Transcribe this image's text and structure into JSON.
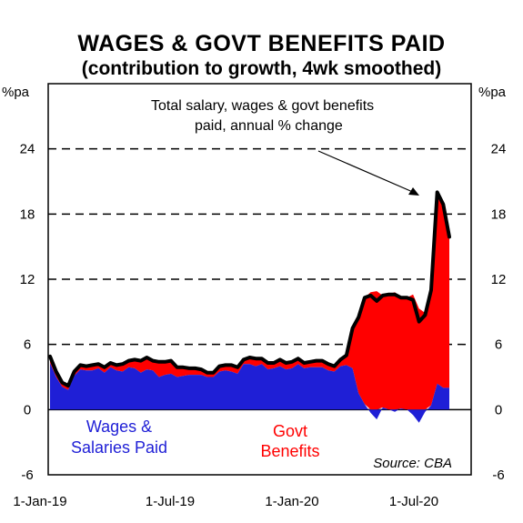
{
  "chart_data": {
    "type": "area",
    "title": "WAGES & GOVT BENEFITS PAID",
    "subtitle": "(contribution to growth, 4wk smoothed)",
    "ylabel_left": "%pa",
    "ylabel_right": "%pa",
    "ylim": [
      -6,
      30
    ],
    "y_ticks": [
      -6,
      0,
      6,
      12,
      18,
      24
    ],
    "x_ticks": [
      "1-Jan-19",
      "1-Jul-19",
      "1-Jan-20",
      "1-Jul-20"
    ],
    "grid": "dashed horizontal",
    "annotation": [
      "Total salary, wages & govt benefits",
      "paid, annual % change"
    ],
    "source": "Source: CBA",
    "colors": {
      "wages": "#1f1fd6",
      "benefits": "#ff0000",
      "total": "#000000"
    },
    "series": [
      {
        "name": "Wages & Salaries Paid",
        "label_lines": [
          "Wages &",
          "Salaries Paid"
        ],
        "values": [
          4.3,
          3.0,
          2.1,
          1.8,
          3.1,
          3.7,
          3.6,
          3.6,
          3.8,
          3.4,
          3.9,
          3.6,
          3.5,
          3.9,
          3.8,
          3.4,
          3.7,
          3.6,
          3.0,
          3.2,
          3.3,
          3.0,
          3.1,
          3.2,
          3.2,
          3.2,
          3.0,
          3.0,
          3.5,
          3.6,
          3.5,
          3.3,
          4.2,
          4.2,
          4.0,
          4.2,
          3.7,
          3.8,
          4.0,
          3.7,
          3.8,
          4.2,
          3.8,
          3.9,
          3.9,
          3.9,
          3.6,
          3.5,
          4.0,
          4.1,
          3.8,
          1.5,
          0.5,
          -0.3,
          -0.9,
          0.2,
          0.0,
          -0.2,
          0.1,
          0.0,
          -0.5,
          -1.2,
          -0.2,
          0.4,
          2.4,
          2.0,
          2.0
        ]
      },
      {
        "name": "Govt Benefits",
        "label_lines": [
          "Govt",
          "Benefits"
        ],
        "values": [
          0.6,
          0.5,
          0.4,
          0.4,
          0.4,
          0.4,
          0.4,
          0.5,
          0.4,
          0.5,
          0.4,
          0.5,
          0.7,
          0.6,
          0.8,
          1.1,
          1.1,
          0.9,
          1.4,
          1.2,
          1.2,
          0.9,
          0.8,
          0.6,
          0.6,
          0.5,
          0.4,
          0.4,
          0.5,
          0.5,
          0.6,
          0.6,
          0.4,
          0.6,
          0.7,
          0.5,
          0.6,
          0.5,
          0.6,
          0.6,
          0.6,
          0.5,
          0.5,
          0.5,
          0.6,
          0.6,
          0.6,
          0.5,
          0.6,
          0.9,
          3.7,
          7.0,
          9.8,
          10.8,
          10.9,
          10.3,
          10.6,
          10.8,
          10.2,
          10.3,
          10.6,
          9.3,
          8.9,
          10.6,
          17.6,
          16.9,
          13.9
        ]
      },
      {
        "name": "Total",
        "values": [
          4.9,
          3.5,
          2.5,
          2.2,
          3.5,
          4.1,
          4.0,
          4.1,
          4.2,
          3.9,
          4.3,
          4.1,
          4.2,
          4.5,
          4.6,
          4.5,
          4.8,
          4.5,
          4.4,
          4.4,
          4.5,
          3.9,
          3.9,
          3.8,
          3.8,
          3.7,
          3.4,
          3.4,
          4.0,
          4.1,
          4.1,
          3.9,
          4.6,
          4.8,
          4.7,
          4.7,
          4.3,
          4.3,
          4.6,
          4.3,
          4.4,
          4.7,
          4.3,
          4.4,
          4.5,
          4.5,
          4.2,
          4.0,
          4.6,
          5.0,
          7.5,
          8.5,
          10.3,
          10.5,
          10.0,
          10.5,
          10.6,
          10.6,
          10.3,
          10.3,
          10.1,
          8.1,
          8.7,
          11.0,
          20.0,
          18.9,
          15.9
        ]
      }
    ]
  }
}
